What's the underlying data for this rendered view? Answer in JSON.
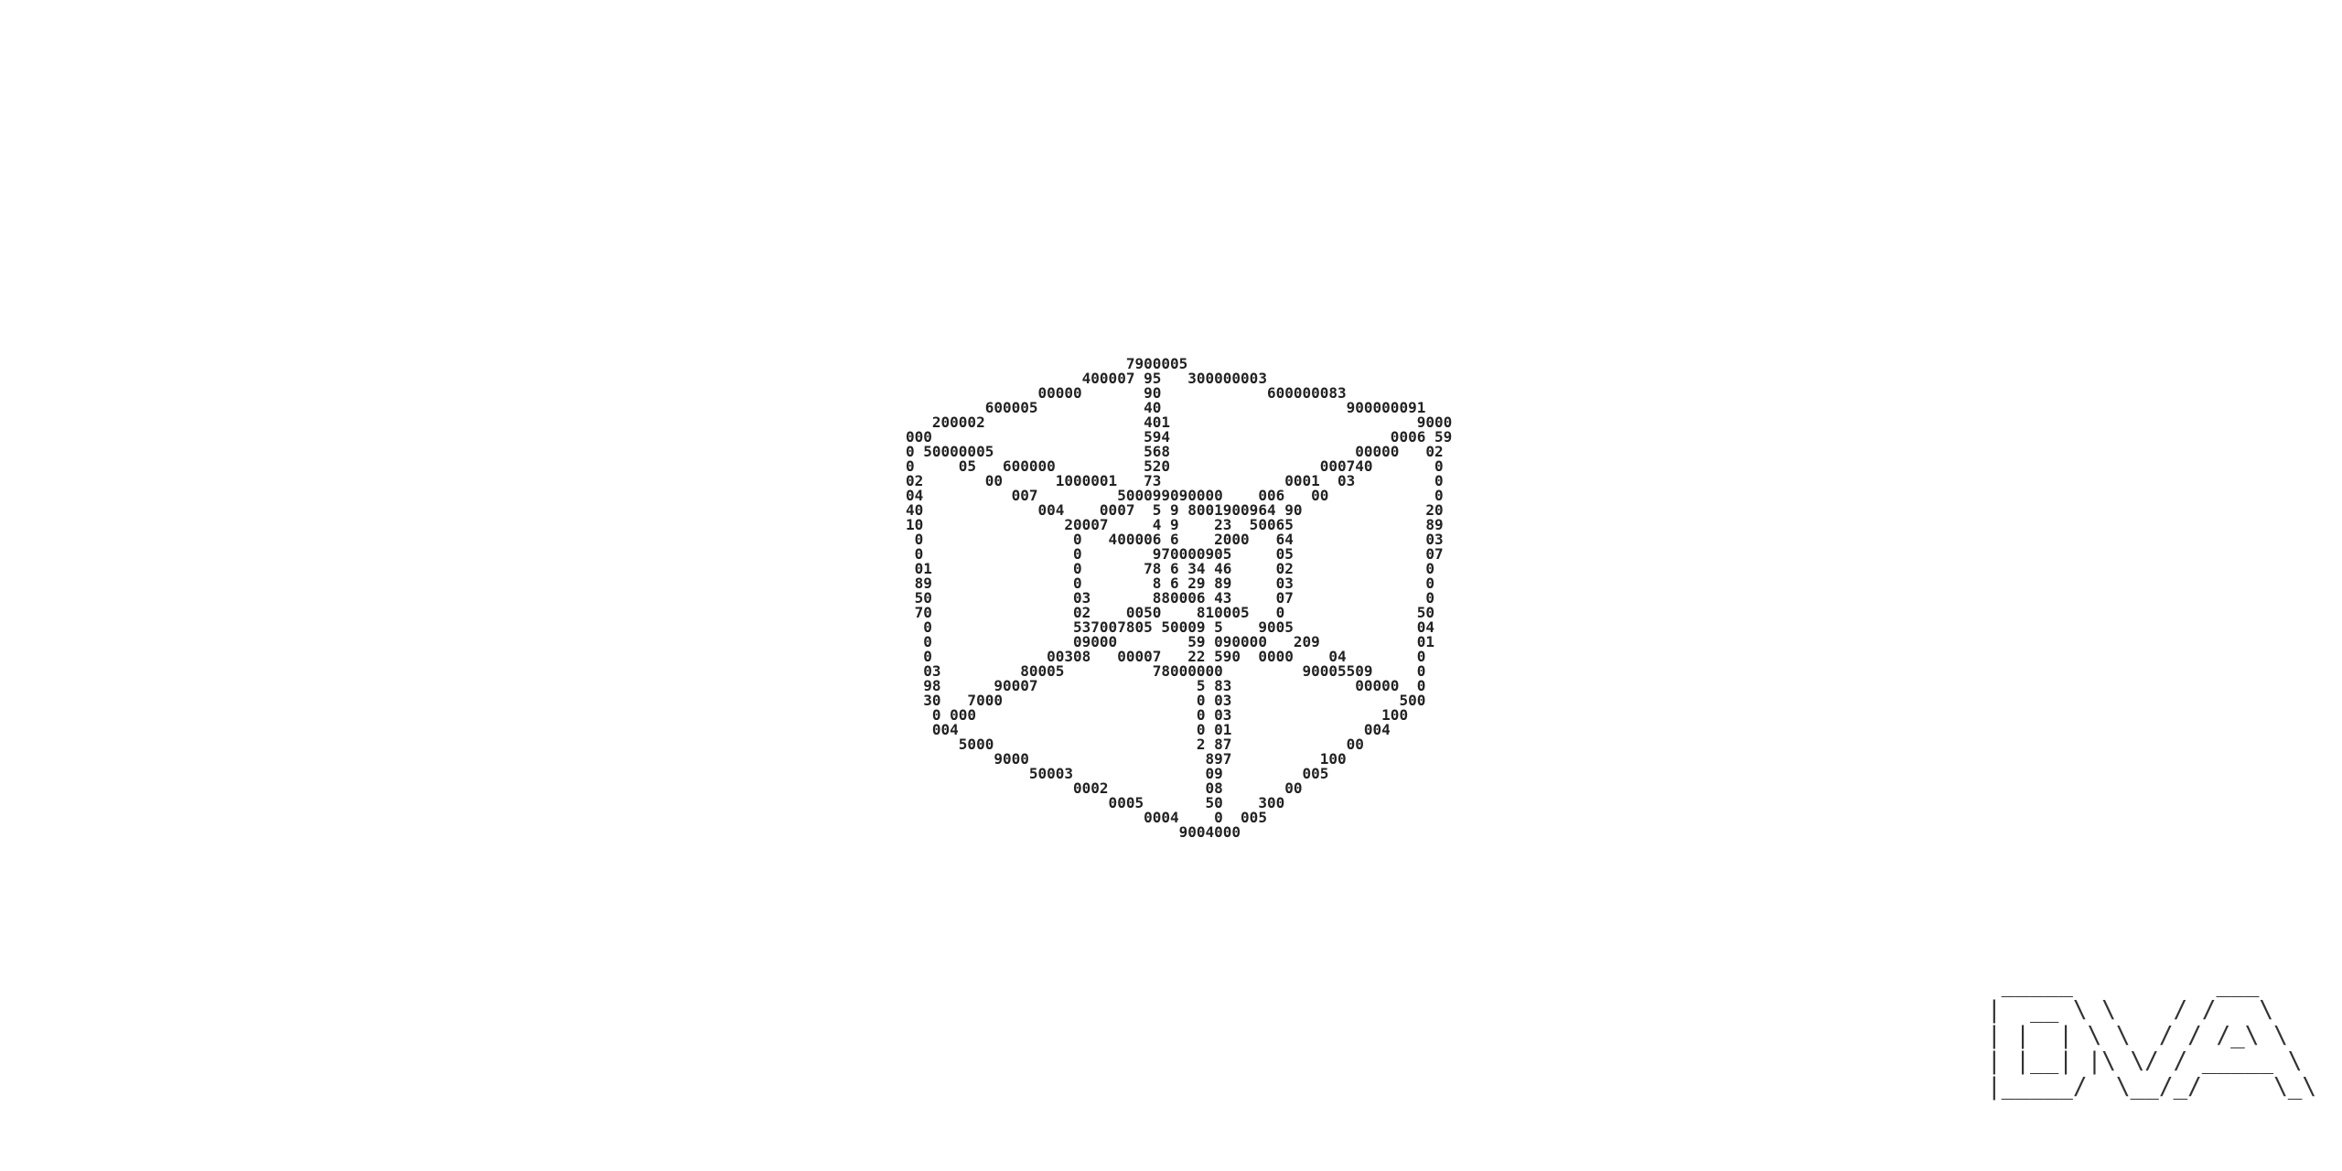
{
  "art": {
    "lines": [
      "                         7900005",
      "                    400007 95   300000003",
      "               00000       90            600000083",
      "         600005            40                     900000091",
      "   200002                  401                            9000",
      "000                        594                         0006 59",
      "0 50000005                 568                     00000   02",
      "0     05   600000          520                 000740       0",
      "02       00      1000001   73              0001  03         0",
      "04          007         500099090000    006   00            0",
      "40             004    0007  5 9 8001900964 90              20",
      "10                20007     4 9    23  50065               89",
      " 0                 0   400006 6    2000   64               03",
      " 0                 0        970000905     05               07",
      " 01                0       78 6 34 46     02               0",
      " 89                0        8 6 29 89     03               0",
      " 50                03       880006 43     07               0",
      " 70                02    0050    810005   0               50",
      "  0                537007805 50009 5    9005              04",
      "  0                09000        59 090000   209           01",
      "  0             00308   00007   22 590  0000    04        0",
      "  03         80005          78000000         90005509     0",
      "  98      90007                  5 83              00000  0",
      "  30   7000                      0 03                   500",
      "   0 000                         0 03                 100",
      "   004                           0 01               004",
      "      5000                       2 87             00",
      "          9000                    897          100",
      "              50003               09         005",
      "                   0002           08       00",
      "                       0005       50    300",
      "                           0004    0  005",
      "                               9004000"
    ]
  },
  "logo": {
    "lines": [
      " _____          ___",
      "|  __ \\ \\    / /   \\",
      "| |  | \\ \\  / / /_\\ \\",
      "| |__| |\\ \\/ / _____ \\",
      "|_____/  \\__/_/     \\_\\"
    ]
  }
}
